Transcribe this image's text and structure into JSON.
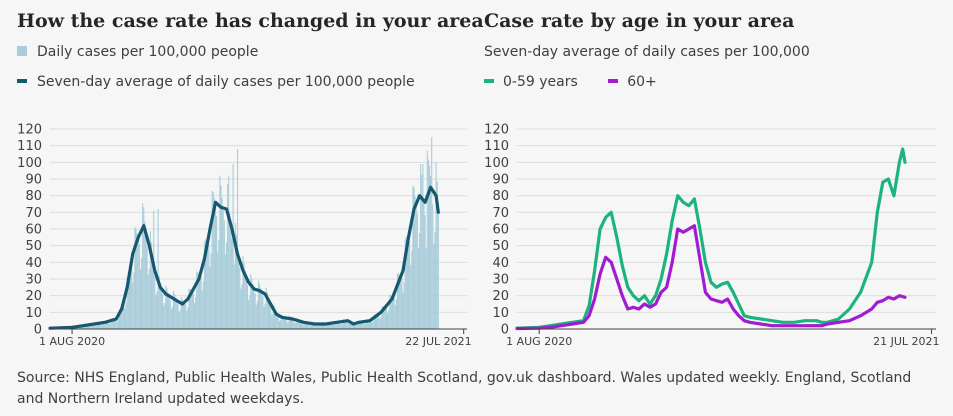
{
  "left": {
    "title": "How the case rate has changed in your area",
    "legend_daily": "Daily cases per 100,000 people",
    "legend_avg": "Seven-day average of daily cases per 100,000 people"
  },
  "right": {
    "title": "Case rate by age in your area",
    "subtitle": "Seven-day average of daily cases per 100,000",
    "legend_young": "0-59 years",
    "legend_old": "60+"
  },
  "source": "Source: NHS England, Public Health Wales, Public Health Scotland, gov.uk dashboard. Wales updated weekly. England, Scotland and Northern Ireland updated weekdays.",
  "colors": {
    "daily_bar": "#a9cdda",
    "avg_line": "#16586f",
    "young_line": "#1bb47e",
    "old_line": "#a11cd1",
    "axis": "#404040",
    "grid": "#dcdcdc"
  },
  "chart_data": [
    {
      "type": "bar",
      "title": "How the case rate has changed in your area",
      "ylim": [
        0,
        120
      ],
      "yticks": [
        0,
        10,
        20,
        30,
        40,
        50,
        60,
        70,
        80,
        90,
        100,
        110,
        120
      ],
      "x_tick_labels": [
        "1 AUG 2020",
        "22 JUL 2021"
      ],
      "x_range_days": [
        -20,
        358
      ],
      "series": [
        {
          "name": "Seven-day average of daily cases per 100,000 people",
          "style": "line",
          "points": [
            [
              -20,
              0.5
            ],
            [
              0,
              1
            ],
            [
              10,
              2
            ],
            [
              20,
              3
            ],
            [
              30,
              4
            ],
            [
              40,
              6
            ],
            [
              45,
              12
            ],
            [
              50,
              25
            ],
            [
              55,
              45
            ],
            [
              60,
              55
            ],
            [
              65,
              62
            ],
            [
              70,
              50
            ],
            [
              75,
              35
            ],
            [
              80,
              25
            ],
            [
              85,
              21
            ],
            [
              90,
              19
            ],
            [
              95,
              17
            ],
            [
              100,
              15
            ],
            [
              105,
              18
            ],
            [
              110,
              24
            ],
            [
              115,
              30
            ],
            [
              120,
              42
            ],
            [
              125,
              60
            ],
            [
              130,
              76
            ],
            [
              135,
              73
            ],
            [
              140,
              72
            ],
            [
              145,
              60
            ],
            [
              150,
              45
            ],
            [
              155,
              35
            ],
            [
              160,
              28
            ],
            [
              165,
              24
            ],
            [
              170,
              23
            ],
            [
              175,
              21
            ],
            [
              180,
              15
            ],
            [
              185,
              9
            ],
            [
              190,
              7
            ],
            [
              200,
              6
            ],
            [
              210,
              4
            ],
            [
              220,
              3
            ],
            [
              230,
              3
            ],
            [
              240,
              4
            ],
            [
              250,
              5
            ],
            [
              255,
              3
            ],
            [
              260,
              4
            ],
            [
              270,
              5
            ],
            [
              280,
              10
            ],
            [
              290,
              18
            ],
            [
              300,
              35
            ],
            [
              305,
              55
            ],
            [
              310,
              72
            ],
            [
              315,
              80
            ],
            [
              320,
              76
            ],
            [
              325,
              85
            ],
            [
              330,
              80
            ],
            [
              332,
              70
            ]
          ]
        },
        {
          "name": "Daily cases per 100,000 people",
          "style": "bar",
          "note": "bars follow the seven-day average with weekly variation; peaks near 72, 108 and 115"
        }
      ]
    },
    {
      "type": "line",
      "title": "Case rate by age in your area",
      "subtitle": "Seven-day average of daily cases per 100,000",
      "ylim": [
        0,
        120
      ],
      "yticks": [
        0,
        10,
        20,
        30,
        40,
        50,
        60,
        70,
        80,
        90,
        100,
        110,
        120
      ],
      "x_tick_labels": [
        "1 AUG 2020",
        "21 JUL 2021"
      ],
      "x_range_days": [
        -20,
        358
      ],
      "series": [
        {
          "name": "0-59 years",
          "points": [
            [
              -20,
              0.5
            ],
            [
              0,
              1
            ],
            [
              10,
              2
            ],
            [
              20,
              3
            ],
            [
              30,
              4
            ],
            [
              40,
              5
            ],
            [
              45,
              14
            ],
            [
              50,
              35
            ],
            [
              55,
              60
            ],
            [
              60,
              67
            ],
            [
              65,
              70
            ],
            [
              70,
              55
            ],
            [
              75,
              38
            ],
            [
              80,
              25
            ],
            [
              85,
              20
            ],
            [
              90,
              17
            ],
            [
              95,
              20
            ],
            [
              100,
              15
            ],
            [
              105,
              20
            ],
            [
              110,
              30
            ],
            [
              115,
              45
            ],
            [
              120,
              65
            ],
            [
              125,
              80
            ],
            [
              130,
              76
            ],
            [
              135,
              74
            ],
            [
              140,
              78
            ],
            [
              145,
              60
            ],
            [
              150,
              40
            ],
            [
              155,
              28
            ],
            [
              160,
              25
            ],
            [
              165,
              27
            ],
            [
              170,
              28
            ],
            [
              175,
              22
            ],
            [
              180,
              15
            ],
            [
              185,
              8
            ],
            [
              190,
              7
            ],
            [
              200,
              6
            ],
            [
              210,
              5
            ],
            [
              220,
              4
            ],
            [
              230,
              4
            ],
            [
              240,
              5
            ],
            [
              250,
              5
            ],
            [
              255,
              4
            ],
            [
              260,
              4
            ],
            [
              270,
              6
            ],
            [
              280,
              12
            ],
            [
              290,
              22
            ],
            [
              300,
              40
            ],
            [
              305,
              70
            ],
            [
              310,
              88
            ],
            [
              315,
              90
            ],
            [
              320,
              80
            ],
            [
              325,
              100
            ],
            [
              328,
              108
            ],
            [
              330,
              100
            ]
          ]
        },
        {
          "name": "60+",
          "points": [
            [
              -20,
              0.3
            ],
            [
              0,
              0.5
            ],
            [
              10,
              1
            ],
            [
              20,
              2
            ],
            [
              30,
              3
            ],
            [
              40,
              4
            ],
            [
              45,
              8
            ],
            [
              50,
              18
            ],
            [
              55,
              33
            ],
            [
              60,
              43
            ],
            [
              65,
              40
            ],
            [
              70,
              30
            ],
            [
              75,
              20
            ],
            [
              80,
              12
            ],
            [
              85,
              13
            ],
            [
              90,
              12
            ],
            [
              95,
              15
            ],
            [
              100,
              13
            ],
            [
              105,
              15
            ],
            [
              110,
              22
            ],
            [
              115,
              25
            ],
            [
              120,
              40
            ],
            [
              125,
              60
            ],
            [
              130,
              58
            ],
            [
              135,
              60
            ],
            [
              140,
              62
            ],
            [
              145,
              42
            ],
            [
              150,
              22
            ],
            [
              155,
              18
            ],
            [
              160,
              17
            ],
            [
              165,
              16
            ],
            [
              170,
              18
            ],
            [
              175,
              12
            ],
            [
              180,
              8
            ],
            [
              185,
              5
            ],
            [
              190,
              4
            ],
            [
              200,
              3
            ],
            [
              210,
              2
            ],
            [
              220,
              2
            ],
            [
              230,
              2
            ],
            [
              240,
              2
            ],
            [
              250,
              2
            ],
            [
              255,
              2
            ],
            [
              260,
              3
            ],
            [
              270,
              4
            ],
            [
              280,
              5
            ],
            [
              290,
              8
            ],
            [
              300,
              12
            ],
            [
              305,
              16
            ],
            [
              310,
              17
            ],
            [
              315,
              19
            ],
            [
              320,
              18
            ],
            [
              325,
              20
            ],
            [
              330,
              19
            ]
          ]
        }
      ]
    }
  ]
}
